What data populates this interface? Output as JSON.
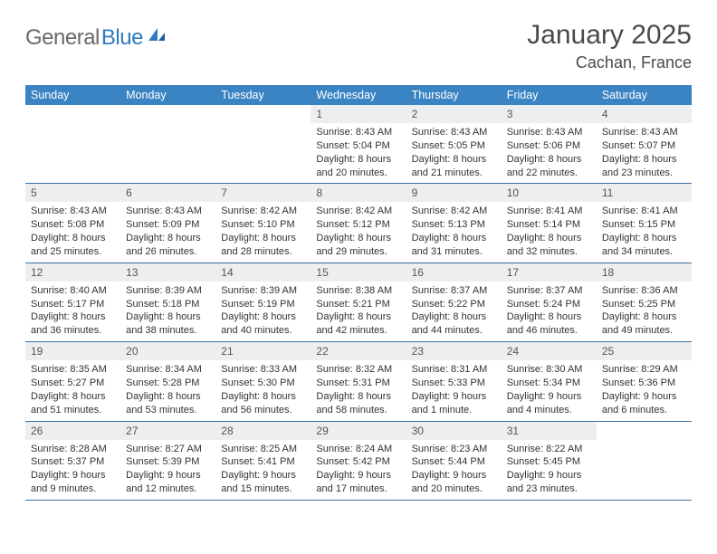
{
  "brand": {
    "word1": "General",
    "word2": "Blue"
  },
  "title": {
    "month": "January 2025",
    "location": "Cachan, France"
  },
  "colors": {
    "header_bg": "#3b84c4",
    "header_text": "#ffffff",
    "daynum_bg": "#eceeef",
    "rule": "#3b6fa0",
    "brand_blue": "#2f7bbf",
    "brand_gray": "#6a6a6a"
  },
  "weekdays": [
    "Sunday",
    "Monday",
    "Tuesday",
    "Wednesday",
    "Thursday",
    "Friday",
    "Saturday"
  ],
  "weeks": [
    [
      null,
      null,
      null,
      {
        "n": "1",
        "sr": "8:43 AM",
        "ss": "5:04 PM",
        "dl": "8 hours and 20 minutes."
      },
      {
        "n": "2",
        "sr": "8:43 AM",
        "ss": "5:05 PM",
        "dl": "8 hours and 21 minutes."
      },
      {
        "n": "3",
        "sr": "8:43 AM",
        "ss": "5:06 PM",
        "dl": "8 hours and 22 minutes."
      },
      {
        "n": "4",
        "sr": "8:43 AM",
        "ss": "5:07 PM",
        "dl": "8 hours and 23 minutes."
      }
    ],
    [
      {
        "n": "5",
        "sr": "8:43 AM",
        "ss": "5:08 PM",
        "dl": "8 hours and 25 minutes."
      },
      {
        "n": "6",
        "sr": "8:43 AM",
        "ss": "5:09 PM",
        "dl": "8 hours and 26 minutes."
      },
      {
        "n": "7",
        "sr": "8:42 AM",
        "ss": "5:10 PM",
        "dl": "8 hours and 28 minutes."
      },
      {
        "n": "8",
        "sr": "8:42 AM",
        "ss": "5:12 PM",
        "dl": "8 hours and 29 minutes."
      },
      {
        "n": "9",
        "sr": "8:42 AM",
        "ss": "5:13 PM",
        "dl": "8 hours and 31 minutes."
      },
      {
        "n": "10",
        "sr": "8:41 AM",
        "ss": "5:14 PM",
        "dl": "8 hours and 32 minutes."
      },
      {
        "n": "11",
        "sr": "8:41 AM",
        "ss": "5:15 PM",
        "dl": "8 hours and 34 minutes."
      }
    ],
    [
      {
        "n": "12",
        "sr": "8:40 AM",
        "ss": "5:17 PM",
        "dl": "8 hours and 36 minutes."
      },
      {
        "n": "13",
        "sr": "8:39 AM",
        "ss": "5:18 PM",
        "dl": "8 hours and 38 minutes."
      },
      {
        "n": "14",
        "sr": "8:39 AM",
        "ss": "5:19 PM",
        "dl": "8 hours and 40 minutes."
      },
      {
        "n": "15",
        "sr": "8:38 AM",
        "ss": "5:21 PM",
        "dl": "8 hours and 42 minutes."
      },
      {
        "n": "16",
        "sr": "8:37 AM",
        "ss": "5:22 PM",
        "dl": "8 hours and 44 minutes."
      },
      {
        "n": "17",
        "sr": "8:37 AM",
        "ss": "5:24 PM",
        "dl": "8 hours and 46 minutes."
      },
      {
        "n": "18",
        "sr": "8:36 AM",
        "ss": "5:25 PM",
        "dl": "8 hours and 49 minutes."
      }
    ],
    [
      {
        "n": "19",
        "sr": "8:35 AM",
        "ss": "5:27 PM",
        "dl": "8 hours and 51 minutes."
      },
      {
        "n": "20",
        "sr": "8:34 AM",
        "ss": "5:28 PM",
        "dl": "8 hours and 53 minutes."
      },
      {
        "n": "21",
        "sr": "8:33 AM",
        "ss": "5:30 PM",
        "dl": "8 hours and 56 minutes."
      },
      {
        "n": "22",
        "sr": "8:32 AM",
        "ss": "5:31 PM",
        "dl": "8 hours and 58 minutes."
      },
      {
        "n": "23",
        "sr": "8:31 AM",
        "ss": "5:33 PM",
        "dl": "9 hours and 1 minute."
      },
      {
        "n": "24",
        "sr": "8:30 AM",
        "ss": "5:34 PM",
        "dl": "9 hours and 4 minutes."
      },
      {
        "n": "25",
        "sr": "8:29 AM",
        "ss": "5:36 PM",
        "dl": "9 hours and 6 minutes."
      }
    ],
    [
      {
        "n": "26",
        "sr": "8:28 AM",
        "ss": "5:37 PM",
        "dl": "9 hours and 9 minutes."
      },
      {
        "n": "27",
        "sr": "8:27 AM",
        "ss": "5:39 PM",
        "dl": "9 hours and 12 minutes."
      },
      {
        "n": "28",
        "sr": "8:25 AM",
        "ss": "5:41 PM",
        "dl": "9 hours and 15 minutes."
      },
      {
        "n": "29",
        "sr": "8:24 AM",
        "ss": "5:42 PM",
        "dl": "9 hours and 17 minutes."
      },
      {
        "n": "30",
        "sr": "8:23 AM",
        "ss": "5:44 PM",
        "dl": "9 hours and 20 minutes."
      },
      {
        "n": "31",
        "sr": "8:22 AM",
        "ss": "5:45 PM",
        "dl": "9 hours and 23 minutes."
      },
      null
    ]
  ],
  "labels": {
    "sunrise": "Sunrise:",
    "sunset": "Sunset:",
    "daylight": "Daylight:"
  }
}
